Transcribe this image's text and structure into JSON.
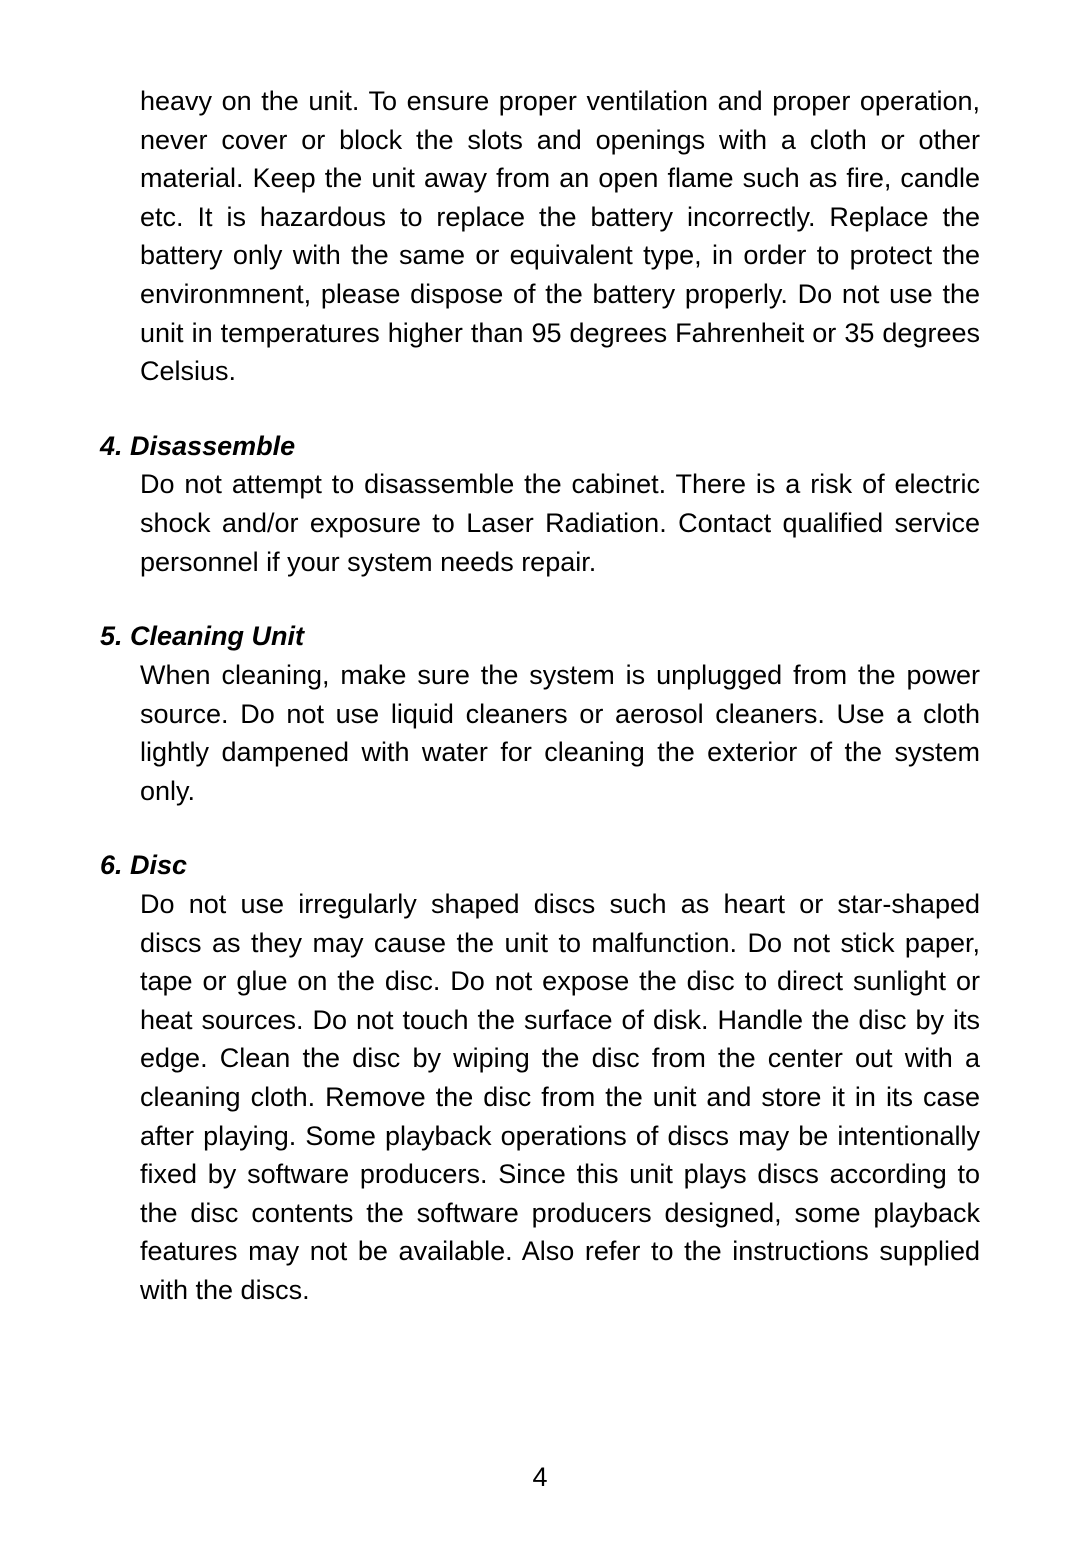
{
  "page": {
    "number": "4"
  },
  "continuation": {
    "text": "heavy on the unit. To ensure proper ventilation and proper operation, never cover or block the slots and openings with a cloth or other material. Keep the unit away from an open flame such as fire, candle etc. It is hazardous to replace the battery incorrectly. Replace the battery only with the same or equivalent type, in order to protect the environmnent, please dispose of the battery properly. Do not use the unit in temperatures higher than 95 degrees Fahrenheit or 35 degrees Celsius."
  },
  "sections": {
    "s4": {
      "heading": "4. Disassemble",
      "body": "Do not attempt to disassemble the cabinet. There is a risk of electric shock and/or exposure to Laser Radiation. Contact qualified service personnel if your system needs repair."
    },
    "s5": {
      "heading": "5. Cleaning Unit",
      "body": "When cleaning, make sure the system is unplugged  from the power source. Do not use liquid cleaners or aerosol cleaners. Use a cloth lightly dampened with water for cleaning the exterior of the system only."
    },
    "s6": {
      "heading": "6. Disc",
      "body": "Do not use irregularly shaped discs such as heart or star-shaped discs as they may cause the unit to malfunction. Do not stick paper, tape or glue on the disc. Do not expose the disc to direct sunlight or heat sources. Do not touch the surface of disk. Handle the disc by its edge. Clean the disc by wiping the disc from the center out with a cleaning cloth. Remove the disc from the unit and store it in its case after playing. Some playback operations of discs may be intentionally fixed by software producers. Since this unit plays discs according to the disc contents the software producers designed, some playback features may not be available. Also refer to the instructions supplied with the discs."
    }
  },
  "style": {
    "body_font_size_pt": 20,
    "heading_font_size_pt": 20,
    "line_height": 1.43,
    "text_color": "#000000",
    "background_color": "#ffffff",
    "font_family": "Arial, Helvetica, sans-serif"
  }
}
